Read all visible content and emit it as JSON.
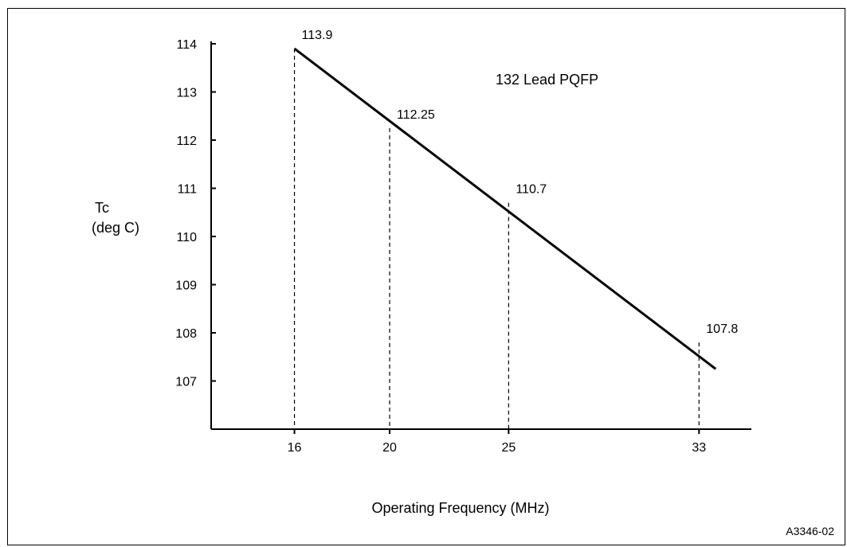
{
  "chart_data": {
    "type": "line",
    "ylabel_line1": "Tc",
    "ylabel_line2": "(deg C)",
    "xlabel": "Operating Frequency (MHz)",
    "annotation": "132 Lead PQFP",
    "figure_id": "A3346-02",
    "y_ticks": [
      "107",
      "108",
      "109",
      "110",
      "111",
      "112",
      "113",
      "114"
    ],
    "x_ticks": [
      "16",
      "20",
      "25",
      "33"
    ],
    "ylim": [
      106,
      114
    ],
    "xlim": [
      12.5,
      35.2
    ],
    "line_start": {
      "x": 16,
      "y": 113.9
    },
    "line_end": {
      "x": 33.7,
      "y": 107.25
    },
    "points": [
      {
        "x": 16,
        "y": 113.9,
        "label": "113.9"
      },
      {
        "x": 20,
        "y": 112.25,
        "label": "112.25"
      },
      {
        "x": 25,
        "y": 110.7,
        "label": "110.7"
      },
      {
        "x": 33,
        "y": 107.8,
        "label": "107.8"
      }
    ],
    "grid": false,
    "series_color": "#000000"
  }
}
